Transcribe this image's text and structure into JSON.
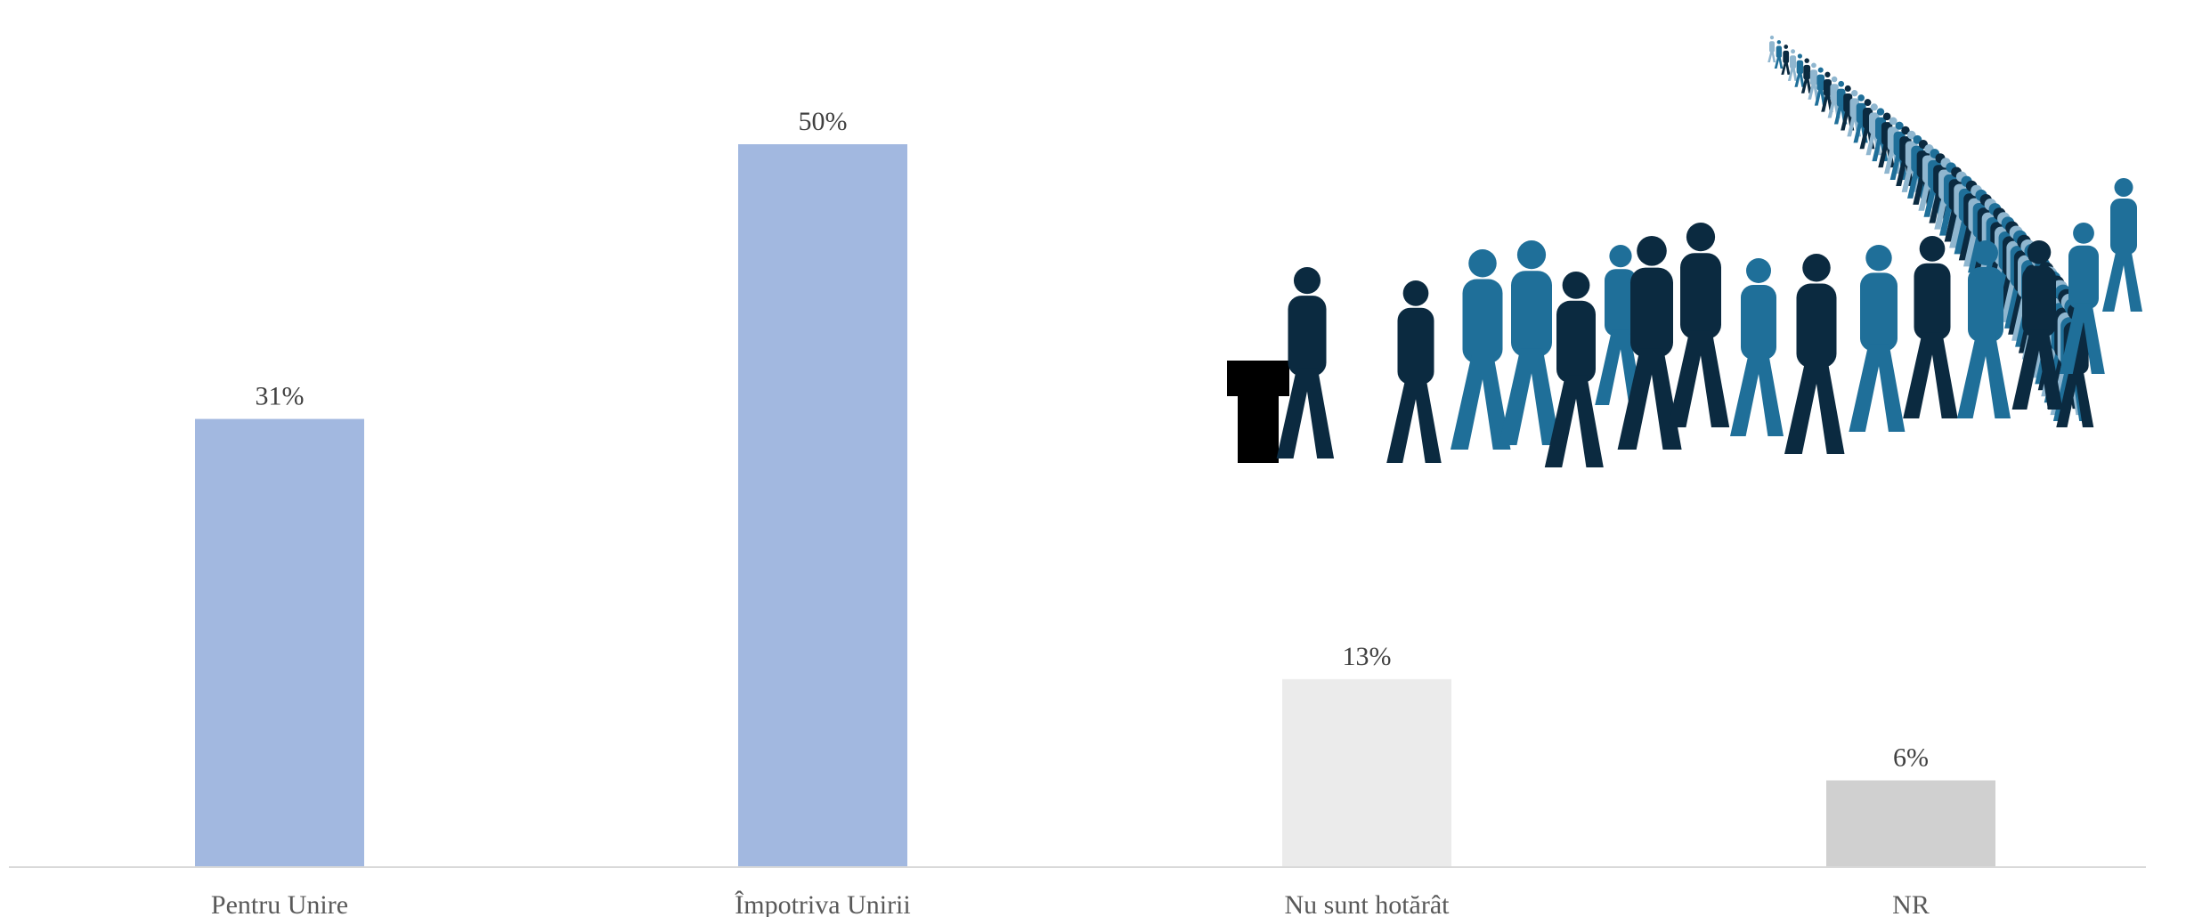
{
  "chart_data": {
    "type": "bar",
    "categories": [
      "Pentru Unire",
      "Împotriva Unirii",
      "Nu sunt hotărât",
      "NR"
    ],
    "values": [
      31,
      50,
      13,
      6
    ],
    "value_labels": [
      "31%",
      "50%",
      "13%",
      "6%"
    ],
    "unit": "%",
    "ylim": [
      0,
      60
    ],
    "grid": false,
    "bar_colors": [
      "#a2b8e0",
      "#a2b8e0",
      "#ebebeb",
      "#d0d0d0"
    ],
    "title": "",
    "xlabel": "",
    "ylabel": ""
  },
  "illustration": {
    "icon": "crowd-voting-icon",
    "colors": [
      "#0b2a40",
      "#1f6f99",
      "#8fb6cf",
      "#000000"
    ]
  }
}
